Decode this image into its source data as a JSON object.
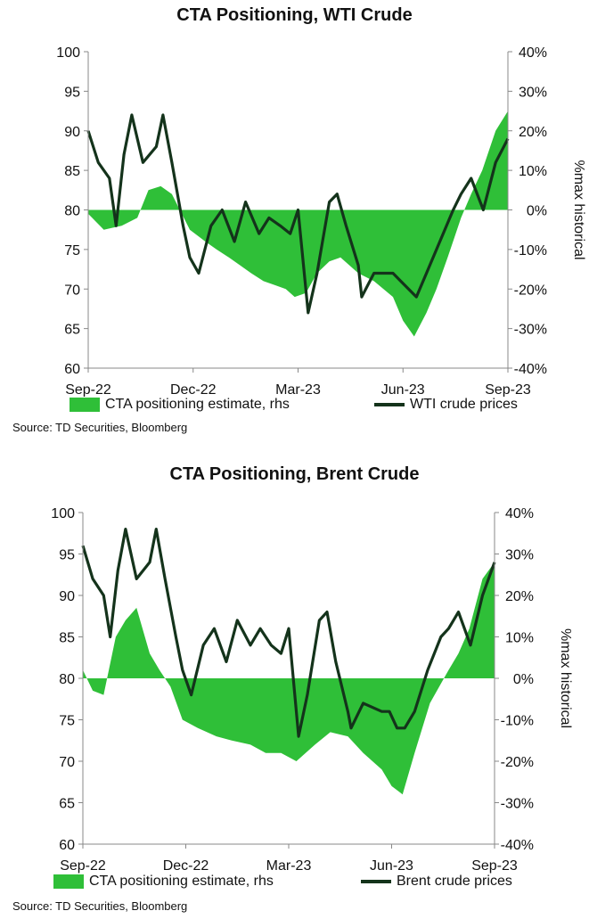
{
  "colors": {
    "area": "#2fbf38",
    "line": "#14331b",
    "axis": "#888888"
  },
  "charts": [
    {
      "title": "CTA Positioning, WTI Crude",
      "source": "Source: TD Securities, Bloomberg",
      "legend": {
        "area_label": "CTA positioning estimate, rhs",
        "line_label": "WTI crude prices"
      }
    },
    {
      "title": "CTA Positioning, Brent Crude",
      "source": "Source: TD Securities, Bloomberg",
      "legend": {
        "area_label": "CTA positioning estimate, rhs",
        "line_label": "Brent crude prices"
      }
    }
  ],
  "chart_data": [
    {
      "type": "line",
      "title": "CTA Positioning, WTI Crude",
      "xlabel": "",
      "ylabel_left": "",
      "ylabel_right": "%max historical",
      "x_range": [
        "2022-09-01",
        "2023-09-12"
      ],
      "x_ticks": [
        "Sep-22",
        "Dec-22",
        "Mar-23",
        "Jun-23",
        "Sep-23"
      ],
      "y_left": {
        "min": 60,
        "max": 100,
        "ticks": [
          60,
          65,
          70,
          75,
          80,
          85,
          90,
          95,
          100
        ]
      },
      "y_right": {
        "min": -40,
        "max": 40,
        "ticks": [
          "-40%",
          "-30%",
          "-20%",
          "-10%",
          "0%",
          "10%",
          "20%",
          "30%",
          "40%"
        ]
      },
      "series": [
        {
          "name": "CTA positioning estimate, rhs",
          "kind": "area",
          "axis": "right",
          "x": [
            "2022-09-01",
            "2022-09-15",
            "2022-10-01",
            "2022-10-15",
            "2022-10-25",
            "2022-11-05",
            "2022-11-15",
            "2022-12-01",
            "2022-12-15",
            "2022-12-25",
            "2023-01-05",
            "2023-01-15",
            "2023-01-25",
            "2023-02-05",
            "2023-02-15",
            "2023-02-25",
            "2023-03-05",
            "2023-03-15",
            "2023-03-25",
            "2023-04-05",
            "2023-04-15",
            "2023-05-01",
            "2023-05-15",
            "2023-06-01",
            "2023-06-10",
            "2023-06-20",
            "2023-07-01",
            "2023-07-10",
            "2023-07-20",
            "2023-08-01",
            "2023-08-10",
            "2023-08-20",
            "2023-09-01",
            "2023-09-12"
          ],
          "values": [
            -1,
            -5,
            -4,
            -2,
            5,
            6,
            4,
            -5,
            -8,
            -10,
            -12,
            -14,
            -16,
            -18,
            -19,
            -20,
            -22,
            -21,
            -16,
            -13,
            -12,
            -16,
            -18,
            -22,
            -28,
            -32,
            -26,
            -20,
            -12,
            -2,
            4,
            10,
            20,
            25
          ]
        },
        {
          "name": "WTI crude prices",
          "kind": "line",
          "axis": "left",
          "x": [
            "2022-09-01",
            "2022-09-10",
            "2022-09-20",
            "2022-09-26",
            "2022-10-03",
            "2022-10-10",
            "2022-10-20",
            "2022-11-01",
            "2022-11-07",
            "2022-11-15",
            "2022-11-25",
            "2022-12-01",
            "2022-12-09",
            "2022-12-20",
            "2022-12-30",
            "2023-01-10",
            "2023-01-20",
            "2023-02-01",
            "2023-02-10",
            "2023-02-20",
            "2023-03-01",
            "2023-03-08",
            "2023-03-17",
            "2023-03-25",
            "2023-04-05",
            "2023-04-12",
            "2023-04-20",
            "2023-05-01",
            "2023-05-04",
            "2023-05-15",
            "2023-06-01",
            "2023-06-08",
            "2023-06-15",
            "2023-06-22",
            "2023-07-01",
            "2023-07-13",
            "2023-07-25",
            "2023-08-01",
            "2023-08-10",
            "2023-08-21",
            "2023-09-01",
            "2023-09-12"
          ],
          "values": [
            90,
            86,
            84,
            78,
            87,
            92,
            86,
            88,
            92,
            86,
            78,
            74,
            72,
            78,
            80,
            76,
            81,
            77,
            79,
            78,
            77,
            80,
            67,
            72,
            81,
            82,
            78,
            73,
            69,
            72,
            72,
            71,
            70,
            69,
            72,
            76,
            80,
            82,
            84,
            80,
            86,
            89
          ]
        }
      ]
    },
    {
      "type": "line",
      "title": "CTA Positioning, Brent Crude",
      "xlabel": "",
      "ylabel_left": "",
      "ylabel_right": "%max historical",
      "x_range": [
        "2022-09-01",
        "2023-09-12"
      ],
      "x_ticks": [
        "Sep-22",
        "Dec-22",
        "Mar-23",
        "Jun-23",
        "Sep-23"
      ],
      "y_left": {
        "min": 60,
        "max": 100,
        "ticks": [
          60,
          65,
          70,
          75,
          80,
          85,
          90,
          95,
          100
        ]
      },
      "y_right": {
        "min": -40,
        "max": 40,
        "ticks": [
          "-40%",
          "-30%",
          "-20%",
          "-10%",
          "0%",
          "10%",
          "20%",
          "30%",
          "40%"
        ]
      },
      "series": [
        {
          "name": "CTA positioning estimate, rhs",
          "kind": "area",
          "axis": "right",
          "x": [
            "2022-09-01",
            "2022-09-10",
            "2022-09-20",
            "2022-10-01",
            "2022-10-10",
            "2022-10-20",
            "2022-11-01",
            "2022-11-10",
            "2022-11-20",
            "2022-12-01",
            "2022-12-15",
            "2023-01-01",
            "2023-01-15",
            "2023-02-01",
            "2023-02-15",
            "2023-03-01",
            "2023-03-15",
            "2023-04-01",
            "2023-04-15",
            "2023-05-01",
            "2023-05-15",
            "2023-06-01",
            "2023-06-10",
            "2023-06-20",
            "2023-07-01",
            "2023-07-15",
            "2023-08-01",
            "2023-08-10",
            "2023-08-20",
            "2023-09-01",
            "2023-09-12"
          ],
          "values": [
            2,
            -3,
            -4,
            10,
            14,
            17,
            6,
            2,
            -2,
            -10,
            -12,
            -14,
            -15,
            -16,
            -18,
            -18,
            -20,
            -16,
            -13,
            -14,
            -18,
            -22,
            -26,
            -28,
            -18,
            -6,
            2,
            6,
            12,
            24,
            28
          ]
        },
        {
          "name": "Brent crude prices",
          "kind": "line",
          "axis": "left",
          "x": [
            "2022-09-01",
            "2022-09-10",
            "2022-09-20",
            "2022-09-26",
            "2022-10-03",
            "2022-10-10",
            "2022-10-20",
            "2022-11-01",
            "2022-11-07",
            "2022-11-15",
            "2022-11-25",
            "2022-12-01",
            "2022-12-09",
            "2022-12-20",
            "2022-12-30",
            "2023-01-10",
            "2023-01-20",
            "2023-02-01",
            "2023-02-10",
            "2023-02-20",
            "2023-03-01",
            "2023-03-08",
            "2023-03-17",
            "2023-03-25",
            "2023-04-05",
            "2023-04-12",
            "2023-04-20",
            "2023-05-01",
            "2023-05-04",
            "2023-05-15",
            "2023-06-01",
            "2023-06-08",
            "2023-06-15",
            "2023-06-22",
            "2023-07-01",
            "2023-07-13",
            "2023-07-25",
            "2023-08-01",
            "2023-08-10",
            "2023-08-21",
            "2023-09-01",
            "2023-09-12"
          ],
          "values": [
            96,
            92,
            90,
            85,
            93,
            98,
            92,
            94,
            98,
            92,
            85,
            81,
            78,
            84,
            86,
            82,
            87,
            84,
            86,
            84,
            83,
            86,
            73,
            78,
            87,
            88,
            82,
            76,
            74,
            77,
            76,
            76,
            74,
            74,
            76,
            81,
            85,
            86,
            88,
            84,
            90,
            94
          ]
        }
      ]
    }
  ]
}
